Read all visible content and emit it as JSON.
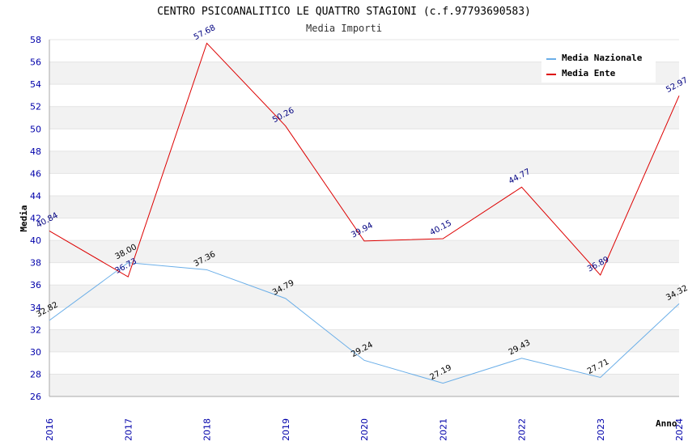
{
  "chart_data": {
    "type": "line",
    "title": "CENTRO PSICOANALITICO LE QUATTRO STAGIONI (c.f.97793690583)",
    "subtitle": "Media Importi",
    "xlabel": "Anno",
    "ylabel": "Media",
    "categories": [
      "2016",
      "2017",
      "2018",
      "2019",
      "2020",
      "2021",
      "2022",
      "2023",
      "2024"
    ],
    "ylim": [
      26,
      58
    ],
    "yticks": [
      "26",
      "28",
      "30",
      "32",
      "34",
      "36",
      "38",
      "40",
      "42",
      "44",
      "46",
      "48",
      "50",
      "52",
      "54",
      "56",
      "58"
    ],
    "grid": true,
    "legend_position": "top-right",
    "series": [
      {
        "name": "Media Nazionale",
        "color": "#6aaee8",
        "values": [
          32.82,
          38.0,
          37.36,
          34.79,
          29.24,
          27.19,
          29.43,
          27.71,
          34.32
        ],
        "labels": [
          "32.82",
          "38.00",
          "37.36",
          "34.79",
          "29.24",
          "27.19",
          "29.43",
          "27.71",
          "34.32"
        ]
      },
      {
        "name": "Media Ente",
        "color": "#dd0000",
        "values": [
          40.84,
          36.73,
          57.68,
          50.26,
          39.94,
          40.15,
          44.77,
          36.89,
          52.97
        ],
        "labels": [
          "40.84",
          "36.73",
          "57.68",
          "50.26",
          "39.94",
          "40.15",
          "44.77",
          "36.89",
          "52.97"
        ]
      }
    ]
  }
}
